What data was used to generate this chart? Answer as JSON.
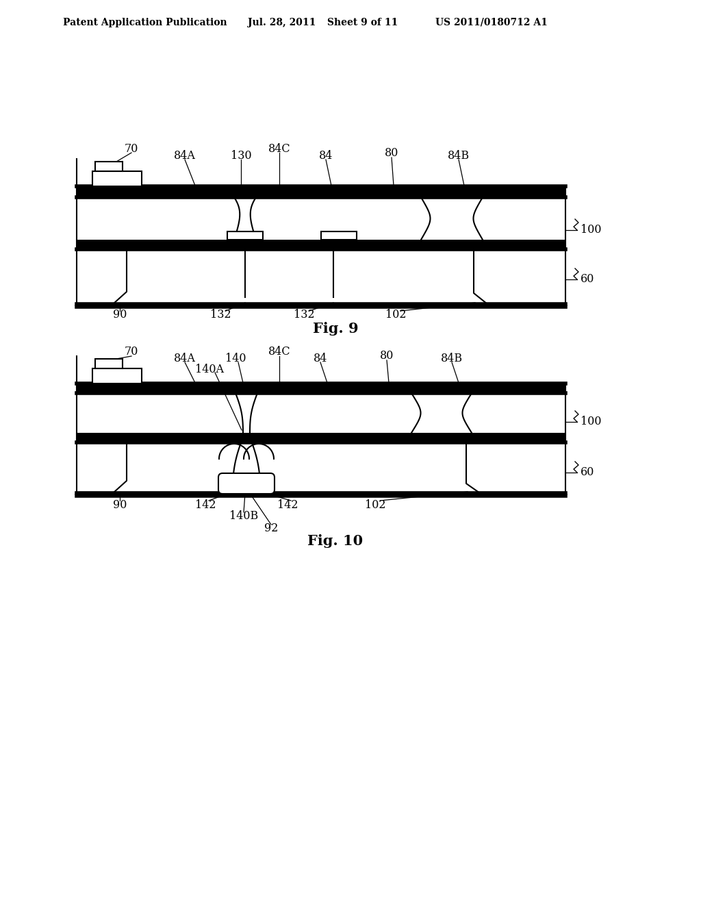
{
  "background_color": "#ffffff",
  "line_color": "#000000",
  "header_left": "Patent Application Publication",
  "header_mid1": "Jul. 28, 2011",
  "header_mid2": "Sheet 9 of 11",
  "header_right": "US 2011/0180712 A1",
  "fig9_title": "Fig. 9",
  "fig10_title": "Fig. 10",
  "lw": 1.5,
  "tlw": 4.0,
  "label_fs": 11.5,
  "header_fs": 10.0,
  "caption_fs": 15
}
